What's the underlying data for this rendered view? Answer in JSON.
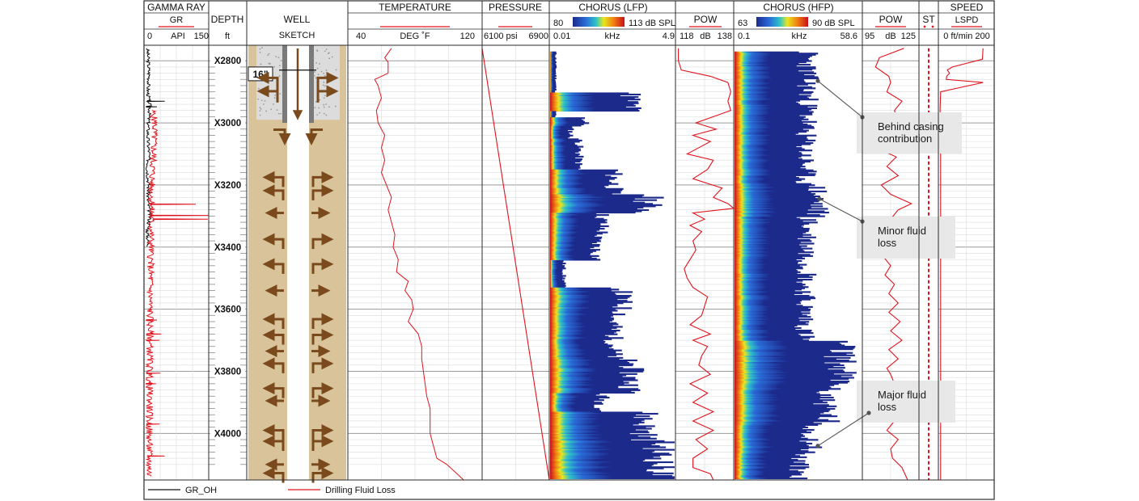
{
  "chart_data": {
    "type": "well-log",
    "colors": {
      "frame": "#2b2b2b",
      "grid": "#c9c9c9",
      "red": "#e0141e",
      "black": "#111111",
      "sand": "#d9c39a",
      "cement": "#dcdcdc",
      "steel": "#7a7a7a",
      "arrow": "#7a4a1c",
      "note_box": "#e8e8e8"
    },
    "depth": {
      "range": [
        2750,
        4150
      ],
      "unit": "ft",
      "ticks": [
        "X2800",
        "X3000",
        "X3200",
        "X3400",
        "X3600",
        "X3800",
        "X4000"
      ],
      "tick_values": [
        2800,
        3000,
        3200,
        3400,
        3600,
        3800,
        4000
      ]
    },
    "tracks": {
      "gamma_ray": {
        "title": "GAMMA RAY",
        "curve": "GR",
        "min": "0",
        "unit": "API",
        "max": "150"
      },
      "depth": {
        "title": "DEPTH",
        "unit": "ft"
      },
      "well": {
        "title": "WELL",
        "subtitle": "SKETCH",
        "casing_label": "16\""
      },
      "temperature": {
        "title": "TEMPERATURE",
        "min": "40",
        "unit": "DEG ˚F",
        "max": "120"
      },
      "pressure": {
        "title": "PRESSURE",
        "min": "6100 psi",
        "max": "6900"
      },
      "chorus_lfp": {
        "title": "CHORUS (LFP)",
        "scale_min": "80",
        "scale_max": "113 dB SPL",
        "min": "0.01",
        "unit": "kHz",
        "max": "4.9"
      },
      "pow_lfp": {
        "title": "POW",
        "min": "118",
        "unit": "dB",
        "max": "138"
      },
      "chorus_hfp": {
        "title": "CHORUS (HFP)",
        "scale_min": "63",
        "scale_max": "90 dB SPL",
        "min": "0.1",
        "unit": "kHz",
        "max": "58.6"
      },
      "pow_hfp": {
        "title": "POW",
        "min": "95",
        "unit": "dB",
        "max": "125"
      },
      "st": {
        "title": "ST"
      },
      "speed": {
        "title": "SPEED",
        "curve": "LSPD",
        "scale": "0 ft/min 200"
      }
    },
    "annotations": [
      {
        "lines": [
          "Behind casing",
          "contribution"
        ],
        "depth": 2865
      },
      {
        "lines": [
          "Minor fluid",
          "loss"
        ],
        "depth": 3245
      },
      {
        "lines": [
          "Major fluid",
          "loss"
        ],
        "depth": 4040
      }
    ],
    "legend": [
      {
        "label": "GR_OH",
        "color": "#111111"
      },
      {
        "label": "Drilling Fluid Loss",
        "color": "#e0141e"
      }
    ],
    "gr_oh_profile": [
      [
        2760,
        8
      ],
      [
        2800,
        10
      ],
      [
        2850,
        12
      ],
      [
        2900,
        9
      ],
      [
        2950,
        14
      ],
      [
        3000,
        10
      ],
      [
        3050,
        9
      ],
      [
        3100,
        12
      ],
      [
        3150,
        8
      ],
      [
        3200,
        11
      ],
      [
        3250,
        9
      ],
      [
        3300,
        14
      ],
      [
        3350,
        8
      ],
      [
        3400,
        10
      ]
    ],
    "gr_oh_spikes": [
      [
        2930,
        48
      ],
      [
        2948,
        30
      ]
    ],
    "fluid_loss_gr_profile": [
      [
        2960,
        20
      ],
      [
        3000,
        25
      ],
      [
        3100,
        22
      ],
      [
        3200,
        18
      ],
      [
        3300,
        17
      ],
      [
        3400,
        16
      ],
      [
        3500,
        15
      ],
      [
        3600,
        14
      ],
      [
        3700,
        14
      ],
      [
        3800,
        13
      ],
      [
        3900,
        13
      ],
      [
        4000,
        12
      ],
      [
        4140,
        12
      ]
    ],
    "fluid_loss_gr_spikes": [
      [
        3262,
        120
      ],
      [
        3298,
        150
      ],
      [
        3310,
        148
      ],
      [
        3635,
        30
      ],
      [
        3680,
        40
      ],
      [
        3700,
        36
      ],
      [
        3806,
        38
      ],
      [
        3840,
        28
      ],
      [
        3970,
        36
      ],
      [
        4073,
        48
      ]
    ],
    "temperature_curve": [
      [
        2760,
        66
      ],
      [
        2790,
        62
      ],
      [
        2805,
        64
      ],
      [
        2840,
        64
      ],
      [
        2860,
        56
      ],
      [
        2880,
        58
      ],
      [
        2920,
        60
      ],
      [
        2960,
        57
      ],
      [
        3000,
        58
      ],
      [
        3040,
        62
      ],
      [
        3080,
        60
      ],
      [
        3120,
        62
      ],
      [
        3160,
        60
      ],
      [
        3200,
        63
      ],
      [
        3240,
        66
      ],
      [
        3280,
        64
      ],
      [
        3320,
        66
      ],
      [
        3360,
        68
      ],
      [
        3400,
        67
      ],
      [
        3440,
        70
      ],
      [
        3480,
        69
      ],
      [
        3510,
        76
      ],
      [
        3540,
        74
      ],
      [
        3570,
        78
      ],
      [
        3600,
        79
      ],
      [
        3640,
        76
      ],
      [
        3680,
        82
      ],
      [
        3720,
        84
      ],
      [
        3760,
        84
      ],
      [
        3800,
        85
      ],
      [
        3840,
        86
      ],
      [
        3880,
        87
      ],
      [
        3920,
        89
      ],
      [
        3960,
        89
      ],
      [
        4000,
        89
      ],
      [
        4040,
        91
      ],
      [
        4080,
        93
      ],
      [
        4100,
        99
      ],
      [
        4130,
        105
      ],
      [
        4150,
        109
      ]
    ],
    "pressure_curve": [
      [
        2760,
        6100
      ],
      [
        4150,
        6900
      ]
    ],
    "pow_lfp_curve": [
      [
        2760,
        119
      ],
      [
        2800,
        119
      ],
      [
        2830,
        120
      ],
      [
        2850,
        130
      ],
      [
        2870,
        136
      ],
      [
        2900,
        137
      ],
      [
        2930,
        136
      ],
      [
        2960,
        137
      ],
      [
        3000,
        125
      ],
      [
        3020,
        132
      ],
      [
        3040,
        124
      ],
      [
        3060,
        130
      ],
      [
        3080,
        126
      ],
      [
        3100,
        122
      ],
      [
        3120,
        131
      ],
      [
        3150,
        129
      ],
      [
        3180,
        124
      ],
      [
        3210,
        134
      ],
      [
        3240,
        131
      ],
      [
        3260,
        136
      ],
      [
        3275,
        138
      ],
      [
        3290,
        124
      ],
      [
        3310,
        128
      ],
      [
        3330,
        123
      ],
      [
        3350,
        127
      ],
      [
        3380,
        124
      ],
      [
        3410,
        125
      ],
      [
        3440,
        123
      ],
      [
        3470,
        121
      ],
      [
        3500,
        122
      ],
      [
        3530,
        124
      ],
      [
        3560,
        129
      ],
      [
        3590,
        128
      ],
      [
        3620,
        127
      ],
      [
        3650,
        123
      ],
      [
        3680,
        130
      ],
      [
        3700,
        124
      ],
      [
        3720,
        129
      ],
      [
        3750,
        127
      ],
      [
        3780,
        126
      ],
      [
        3810,
        130
      ],
      [
        3840,
        123
      ],
      [
        3870,
        129
      ],
      [
        3900,
        124
      ],
      [
        3930,
        131
      ],
      [
        3960,
        124
      ],
      [
        3990,
        131
      ],
      [
        4020,
        125
      ],
      [
        4050,
        129
      ],
      [
        4080,
        124
      ],
      [
        4110,
        124
      ],
      [
        4130,
        130
      ],
      [
        4150,
        131
      ]
    ],
    "pow_hfp_curve": [
      [
        2760,
        117
      ],
      [
        2790,
        104
      ],
      [
        2820,
        102
      ],
      [
        2850,
        109
      ],
      [
        2870,
        110
      ],
      [
        2900,
        108
      ],
      [
        2930,
        116
      ],
      [
        2960,
        112
      ],
      [
        3000,
        114
      ],
      [
        3030,
        104
      ],
      [
        3060,
        110
      ],
      [
        3090,
        106
      ],
      [
        3110,
        113
      ],
      [
        3140,
        108
      ],
      [
        3170,
        114
      ],
      [
        3200,
        105
      ],
      [
        3230,
        110
      ],
      [
        3260,
        121
      ],
      [
        3280,
        114
      ],
      [
        3310,
        110
      ],
      [
        3340,
        105
      ],
      [
        3370,
        111
      ],
      [
        3400,
        112
      ],
      [
        3430,
        106
      ],
      [
        3460,
        110
      ],
      [
        3490,
        107
      ],
      [
        3520,
        112
      ],
      [
        3550,
        109
      ],
      [
        3580,
        114
      ],
      [
        3610,
        109
      ],
      [
        3640,
        115
      ],
      [
        3670,
        110
      ],
      [
        3700,
        116
      ],
      [
        3730,
        109
      ],
      [
        3760,
        114
      ],
      [
        3790,
        108
      ],
      [
        3810,
        110
      ],
      [
        3840,
        112
      ],
      [
        3870,
        108
      ],
      [
        3900,
        111
      ],
      [
        3930,
        110
      ],
      [
        3960,
        112
      ],
      [
        3990,
        108
      ],
      [
        4020,
        114
      ],
      [
        4050,
        110
      ],
      [
        4080,
        111
      ],
      [
        4110,
        116
      ],
      [
        4150,
        119
      ]
    ],
    "st_curve": [
      [
        2760,
        150
      ],
      [
        4150,
        150
      ]
    ],
    "lspd_curve": [
      [
        2760,
        160
      ],
      [
        2795,
        158
      ],
      [
        2820,
        50
      ],
      [
        2830,
        32
      ],
      [
        2840,
        40
      ],
      [
        2850,
        30
      ],
      [
        2860,
        28
      ],
      [
        2870,
        160
      ],
      [
        2900,
        8
      ],
      [
        2960,
        6
      ],
      [
        3000,
        8
      ],
      [
        4150,
        8
      ]
    ]
  }
}
